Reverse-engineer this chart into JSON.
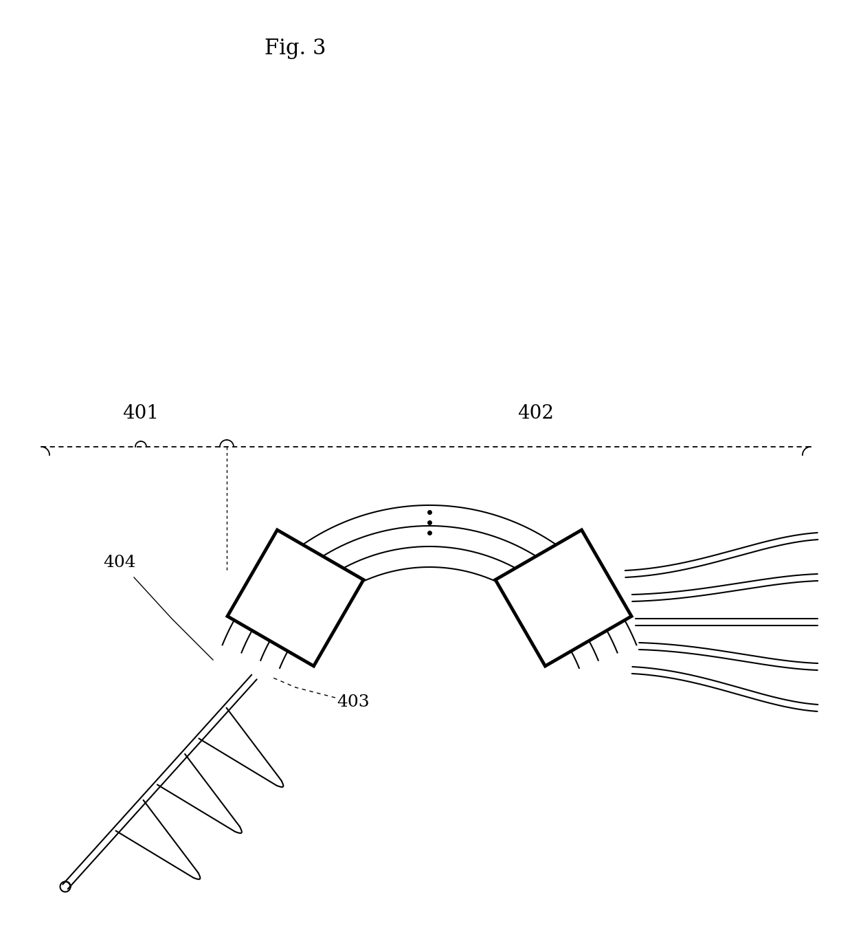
{
  "title": "Fig. 3",
  "bg_color": "#ffffff",
  "line_color": "#000000",
  "label_401": "401",
  "label_402": "402",
  "label_403": "403",
  "label_404": "404",
  "fig_width": 12.4,
  "fig_height": 13.69,
  "dpi": 100
}
